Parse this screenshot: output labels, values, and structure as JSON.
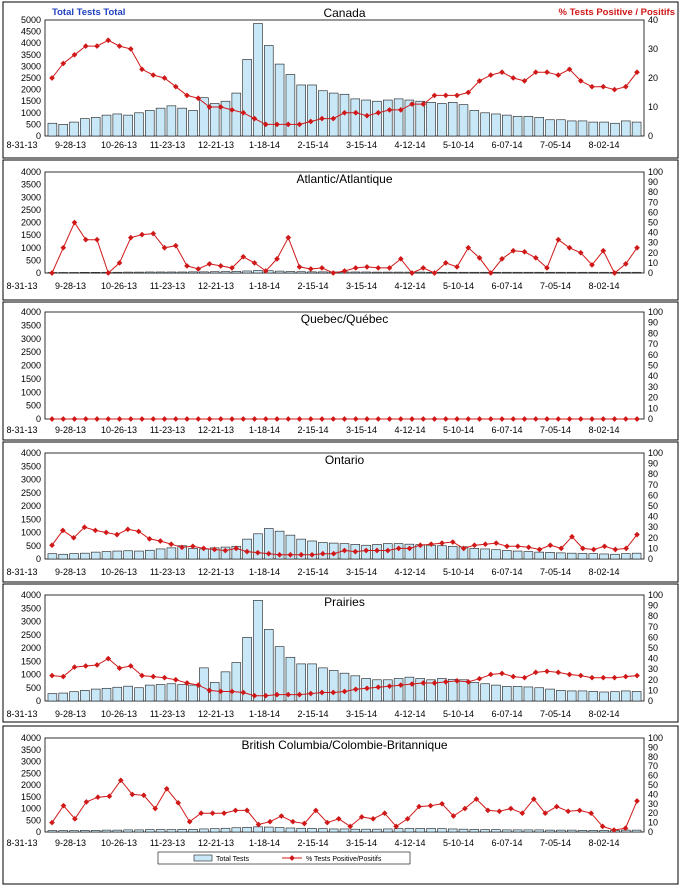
{
  "legend": {
    "bars_label": "Total Tests",
    "line_label": "% Tests Positive/Positifs",
    "bar_color": "#c8e8f8",
    "line_color": "#d01818"
  },
  "chart_data": [
    {
      "type": "bar",
      "title": "Canada",
      "left_title": "Total Tests Total",
      "right_title": "% Tests Positive / Positifs",
      "xticks": [
        "8-31-13",
        "9-28-13",
        "10-26-13",
        "11-23-13",
        "12-21-13",
        "1-18-14",
        "2-15-14",
        "3-15-14",
        "4-12-14",
        "5-10-14",
        "6-07-14",
        "7-05-14",
        "8-02-14"
      ],
      "ylim": [
        0,
        5000
      ],
      "yticks": [
        0,
        500,
        1000,
        1500,
        2000,
        2500,
        3000,
        3500,
        4000,
        4500,
        5000
      ],
      "y2lim": [
        0,
        40
      ],
      "y2ticks": [
        0,
        10,
        20,
        30,
        40
      ],
      "series": [
        {
          "name": "Total Tests",
          "kind": "bar",
          "values": [
            550,
            500,
            600,
            750,
            800,
            900,
            950,
            900,
            1000,
            1100,
            1200,
            1300,
            1200,
            1100,
            1650,
            1400,
            1500,
            1850,
            3300,
            4850,
            3900,
            3100,
            2650,
            2200,
            2200,
            1950,
            1850,
            1800,
            1600,
            1550,
            1500,
            1550,
            1600,
            1550,
            1500,
            1450,
            1400,
            1450,
            1350,
            1100,
            1000,
            950,
            900,
            850,
            850,
            800,
            700,
            700,
            650,
            650,
            600,
            600,
            550,
            650,
            600
          ]
        },
        {
          "name": "% Tests Positive/Positifs",
          "kind": "line",
          "values": [
            20,
            25,
            28,
            31,
            31,
            33,
            31,
            30,
            23,
            21,
            20,
            17,
            14,
            13,
            10,
            10,
            9,
            8,
            6,
            4,
            4,
            4,
            4,
            5,
            6,
            6,
            8,
            8,
            7,
            8,
            9,
            9,
            11,
            11,
            14,
            14,
            14,
            15,
            19,
            21,
            22,
            20,
            19,
            22,
            22,
            21,
            23,
            19,
            17,
            17,
            16,
            17,
            22
          ]
        }
      ]
    },
    {
      "type": "bar",
      "title": "Atlantic/Atlantique",
      "xticks": [
        "8-31-13",
        "9-28-13",
        "10-26-13",
        "11-23-13",
        "12-21-13",
        "1-18-14",
        "2-15-14",
        "3-15-14",
        "4-12-14",
        "5-10-14",
        "6-07-14",
        "7-05-14",
        "8-02-14"
      ],
      "ylim": [
        0,
        4000
      ],
      "yticks": [
        0,
        500,
        1000,
        1500,
        2000,
        2500,
        3000,
        3500,
        4000
      ],
      "y2lim": [
        0,
        100
      ],
      "y2ticks": [
        0,
        10,
        20,
        30,
        40,
        50,
        60,
        70,
        80,
        90,
        100
      ],
      "series": [
        {
          "name": "Total Tests",
          "kind": "bar",
          "values": [
            20,
            20,
            20,
            25,
            25,
            30,
            30,
            35,
            35,
            40,
            40,
            40,
            40,
            45,
            45,
            50,
            55,
            65,
            80,
            100,
            90,
            75,
            60,
            50,
            45,
            45,
            40,
            40,
            40,
            40,
            35,
            35,
            35,
            35,
            35,
            30,
            30,
            30,
            30,
            30,
            30,
            30,
            30,
            30,
            30,
            30,
            30,
            30,
            30,
            30,
            30,
            30,
            30,
            30,
            30
          ]
        },
        {
          "name": "% Tests Positive/Positifs",
          "kind": "line",
          "values": [
            0,
            25,
            50,
            33,
            33,
            0,
            10,
            35,
            38,
            39,
            25,
            27,
            7,
            4,
            9,
            7,
            5,
            16,
            10,
            2,
            14,
            35,
            6,
            4,
            5,
            0,
            2,
            5,
            6,
            5,
            5,
            14,
            0,
            5,
            0,
            10,
            6,
            25,
            15,
            0,
            14,
            22,
            21,
            15,
            5,
            33,
            25,
            20,
            8,
            22,
            0,
            9,
            25
          ]
        }
      ]
    },
    {
      "type": "bar",
      "title": "Quebec/Québec",
      "xticks": [
        "8-31-13",
        "9-28-13",
        "10-26-13",
        "11-23-13",
        "12-21-13",
        "1-18-14",
        "2-15-14",
        "3-15-14",
        "4-12-14",
        "5-10-14",
        "6-07-14",
        "7-05-14",
        "8-02-14"
      ],
      "ylim": [
        0,
        4000
      ],
      "yticks": [
        0,
        500,
        1000,
        1500,
        2000,
        2500,
        3000,
        3500,
        4000
      ],
      "y2lim": [
        0,
        100
      ],
      "y2ticks": [
        0,
        10,
        20,
        30,
        40,
        50,
        60,
        70,
        80,
        90,
        100
      ],
      "series": [
        {
          "name": "Total Tests",
          "kind": "bar",
          "values": [
            0,
            0,
            0,
            0,
            0,
            0,
            0,
            0,
            0,
            0,
            0,
            0,
            0,
            0,
            0,
            0,
            0,
            0,
            0,
            0,
            0,
            0,
            0,
            0,
            0,
            0,
            0,
            0,
            0,
            0,
            0,
            0,
            0,
            0,
            0,
            0,
            0,
            0,
            0,
            0,
            0,
            0,
            0,
            0,
            0,
            0,
            0,
            0,
            0,
            0,
            0,
            0,
            0,
            0,
            0
          ]
        },
        {
          "name": "% Tests Positive/Positifs",
          "kind": "line",
          "values": [
            0,
            0,
            0,
            0,
            0,
            0,
            0,
            0,
            0,
            0,
            0,
            0,
            0,
            0,
            0,
            0,
            0,
            0,
            0,
            0,
            0,
            0,
            0,
            0,
            0,
            0,
            0,
            0,
            0,
            0,
            0,
            0,
            0,
            0,
            0,
            0,
            0,
            0,
            0,
            0,
            0,
            0,
            0,
            0,
            0,
            0,
            0,
            0,
            0,
            0,
            0,
            0,
            0
          ]
        }
      ]
    },
    {
      "type": "bar",
      "title": "Ontario",
      "xticks": [
        "8-31-13",
        "9-28-13",
        "10-26-13",
        "11-23-13",
        "12-21-13",
        "1-18-14",
        "2-15-14",
        "3-15-14",
        "4-12-14",
        "5-10-14",
        "6-07-14",
        "7-05-14",
        "8-02-14"
      ],
      "ylim": [
        0,
        4000
      ],
      "yticks": [
        0,
        500,
        1000,
        1500,
        2000,
        2500,
        3000,
        3500,
        4000
      ],
      "y2lim": [
        0,
        100
      ],
      "y2ticks": [
        0,
        10,
        20,
        30,
        40,
        50,
        60,
        70,
        80,
        90,
        100
      ],
      "series": [
        {
          "name": "Total Tests",
          "kind": "bar",
          "values": [
            200,
            180,
            200,
            220,
            260,
            280,
            300,
            310,
            300,
            330,
            380,
            420,
            500,
            400,
            380,
            420,
            450,
            480,
            750,
            950,
            1150,
            1050,
            900,
            750,
            680,
            620,
            600,
            580,
            550,
            520,
            550,
            580,
            580,
            560,
            540,
            520,
            500,
            480,
            460,
            400,
            380,
            350,
            320,
            300,
            280,
            260,
            250,
            230,
            220,
            210,
            200,
            190,
            180,
            200,
            220
          ]
        },
        {
          "name": "% Tests Positive/Positifs",
          "kind": "line",
          "values": [
            13,
            27,
            20,
            30,
            27,
            25,
            23,
            28,
            26,
            19,
            17,
            14,
            11,
            12,
            10,
            9,
            8,
            10,
            7,
            6,
            5,
            4,
            4,
            4,
            4,
            5,
            5,
            8,
            7,
            8,
            8,
            8,
            10,
            10,
            13,
            14,
            15,
            16,
            10,
            13,
            14,
            15,
            12,
            12,
            11,
            9,
            13,
            10,
            21,
            10,
            9,
            12,
            9,
            10,
            23
          ]
        }
      ]
    },
    {
      "type": "bar",
      "title": "Prairies",
      "xticks": [
        "8-31-13",
        "9-28-13",
        "10-26-13",
        "11-23-13",
        "12-21-13",
        "1-18-14",
        "2-15-14",
        "3-15-14",
        "4-12-14",
        "5-10-14",
        "6-07-14",
        "7-05-14",
        "8-02-14"
      ],
      "ylim": [
        0,
        4000
      ],
      "yticks": [
        0,
        500,
        1000,
        1500,
        2000,
        2500,
        3000,
        3500,
        4000
      ],
      "y2lim": [
        0,
        100
      ],
      "y2ticks": [
        0,
        10,
        20,
        30,
        40,
        50,
        60,
        70,
        80,
        90,
        100
      ],
      "series": [
        {
          "name": "Total Tests",
          "kind": "bar",
          "values": [
            280,
            300,
            350,
            400,
            450,
            480,
            520,
            560,
            500,
            600,
            620,
            650,
            620,
            600,
            1250,
            700,
            1100,
            1450,
            2400,
            3800,
            2700,
            2050,
            1650,
            1400,
            1400,
            1250,
            1150,
            1050,
            950,
            850,
            800,
            800,
            850,
            900,
            850,
            800,
            850,
            820,
            800,
            700,
            650,
            600,
            550,
            550,
            530,
            500,
            450,
            400,
            380,
            380,
            360,
            340,
            350,
            380,
            360
          ]
        },
        {
          "name": "% Tests Positive/Positifs",
          "kind": "line",
          "values": [
            24,
            23,
            32,
            33,
            34,
            40,
            31,
            33,
            24,
            23,
            22,
            20,
            17,
            15,
            10,
            9,
            9,
            8,
            5,
            5,
            6,
            6,
            6,
            7,
            8,
            8,
            9,
            11,
            12,
            13,
            14,
            15,
            16,
            17,
            17,
            18,
            19,
            18,
            21,
            25,
            26,
            23,
            22,
            27,
            28,
            27,
            25,
            24,
            22,
            22,
            22,
            23,
            24
          ]
        }
      ]
    },
    {
      "type": "bar",
      "title": "British Columbia/Colombie-Britannique",
      "xticks": [
        "8-31-13",
        "9-28-13",
        "10-26-13",
        "11-23-13",
        "12-21-13",
        "1-18-14",
        "2-15-14",
        "3-15-14",
        "4-12-14",
        "5-10-14",
        "6-07-14",
        "7-05-14",
        "8-02-14"
      ],
      "ylim": [
        0,
        4000
      ],
      "yticks": [
        0,
        500,
        1000,
        1500,
        2000,
        2500,
        3000,
        3500,
        4000
      ],
      "y2lim": [
        0,
        100
      ],
      "y2ticks": [
        0,
        10,
        20,
        30,
        40,
        50,
        60,
        70,
        80,
        90,
        100
      ],
      "series": [
        {
          "name": "Total Tests",
          "kind": "bar",
          "values": [
            60,
            60,
            60,
            70,
            70,
            80,
            80,
            90,
            90,
            100,
            100,
            100,
            110,
            110,
            130,
            140,
            160,
            180,
            200,
            220,
            210,
            190,
            170,
            160,
            150,
            140,
            130,
            130,
            120,
            120,
            120,
            130,
            140,
            150,
            150,
            150,
            140,
            130,
            120,
            110,
            100,
            100,
            90,
            90,
            90,
            90,
            80,
            80,
            80,
            70,
            70,
            70,
            70,
            80,
            80
          ]
        },
        {
          "name": "% Tests Positive/Positifs",
          "kind": "line",
          "values": [
            10,
            28,
            14,
            32,
            37,
            38,
            55,
            40,
            39,
            25,
            46,
            31,
            11,
            20,
            20,
            20,
            23,
            23,
            8,
            11,
            17,
            11,
            9,
            23,
            10,
            14,
            6,
            16,
            14,
            20,
            6,
            14,
            27,
            28,
            30,
            17,
            25,
            35,
            23,
            22,
            25,
            20,
            35,
            20,
            27,
            22,
            23,
            20,
            6,
            2,
            4,
            33
          ]
        }
      ]
    }
  ]
}
